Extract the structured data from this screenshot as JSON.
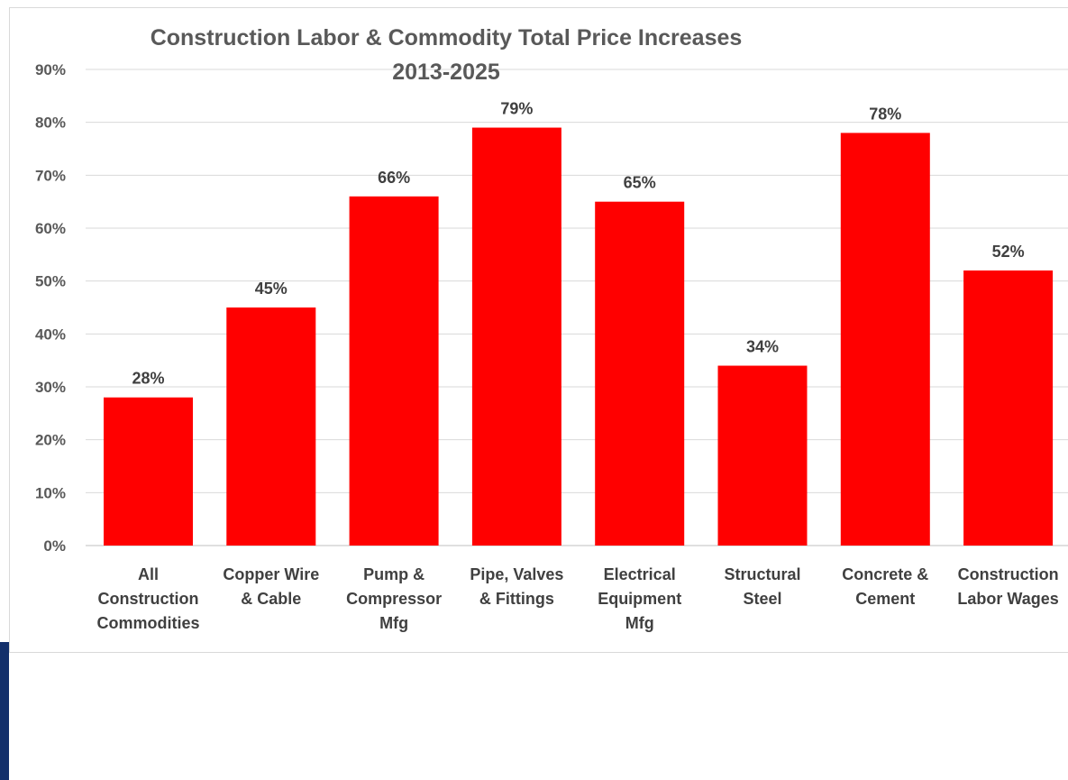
{
  "chart_data": {
    "type": "bar",
    "title_lines": [
      "Construction Labor & Commodity Total Price Increases",
      "2013-2025"
    ],
    "categories": [
      [
        "All",
        "Construction",
        "Commodities"
      ],
      [
        "Copper Wire",
        "& Cable"
      ],
      [
        "Pump &",
        "Compressor",
        "Mfg"
      ],
      [
        "Pipe, Valves",
        "& Fittings"
      ],
      [
        "Electrical",
        "Equipment",
        "Mfg"
      ],
      [
        "Structural",
        "Steel"
      ],
      [
        "Concrete &",
        "Cement"
      ],
      [
        "Construction",
        "Labor Wages"
      ]
    ],
    "values": [
      28,
      45,
      66,
      79,
      65,
      34,
      78,
      52
    ],
    "data_labels": [
      "28%",
      "45%",
      "66%",
      "79%",
      "65%",
      "34%",
      "78%",
      "52%"
    ],
    "y_ticks": [
      "0%",
      "10%",
      "20%",
      "30%",
      "40%",
      "50%",
      "60%",
      "70%",
      "80%",
      "90%"
    ],
    "ylim": [
      0,
      90
    ],
    "grid": true,
    "legend": "none",
    "colors": {
      "bar": "#ff0000",
      "grid": "#d9d9d9",
      "text": "#404040",
      "accent": "#13306b"
    }
  }
}
